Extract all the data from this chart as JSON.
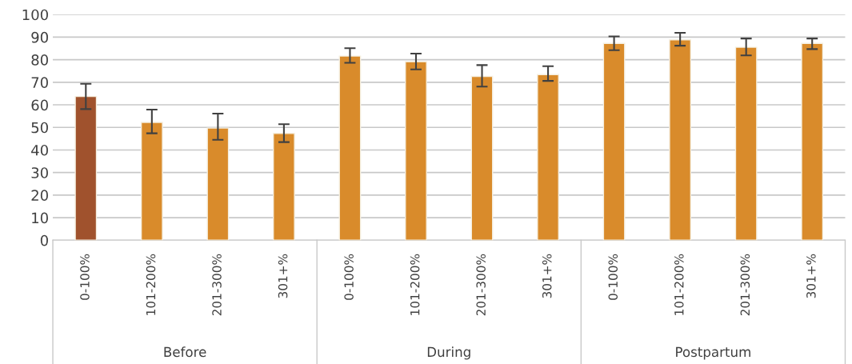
{
  "chart_data": {
    "type": "bar",
    "categories": [
      "0-100%",
      "101-200%",
      "201-300%",
      "301+%",
      "0-100%",
      "101-200%",
      "201-300%",
      "301+%",
      "0-100%",
      "101-200%",
      "201-300%",
      "301+%"
    ],
    "values": [
      63.7,
      52.2,
      49.7,
      47.3,
      81.6,
      79.1,
      72.6,
      73.4,
      87.2,
      88.8,
      85.5,
      87.2
    ],
    "errors": [
      [
        58.1,
        69.3
      ],
      [
        47.4,
        57.9
      ],
      [
        44.5,
        56.1
      ],
      [
        43.5,
        51.4
      ],
      [
        78.6,
        85.1
      ],
      [
        75.7,
        82.7
      ],
      [
        68.1,
        77.6
      ],
      [
        70.6,
        77.1
      ],
      [
        84.2,
        90.3
      ],
      [
        86.2,
        91.9
      ],
      [
        81.9,
        89.4
      ],
      [
        84.7,
        89.4
      ]
    ],
    "colors": [
      "#a0522d",
      "#d98b2b",
      "#d98b2b",
      "#d98b2b",
      "#d98b2b",
      "#d98b2b",
      "#d98b2b",
      "#d98b2b",
      "#d98b2b",
      "#d98b2b",
      "#d98b2b",
      "#d98b2b"
    ],
    "annotations": [
      "Before",
      "During",
      "Postpartum"
    ],
    "ylim": [
      0,
      100
    ],
    "yticks": [
      0,
      10,
      20,
      30,
      40,
      50,
      60,
      70,
      80,
      90,
      100
    ],
    "grid": "y"
  }
}
